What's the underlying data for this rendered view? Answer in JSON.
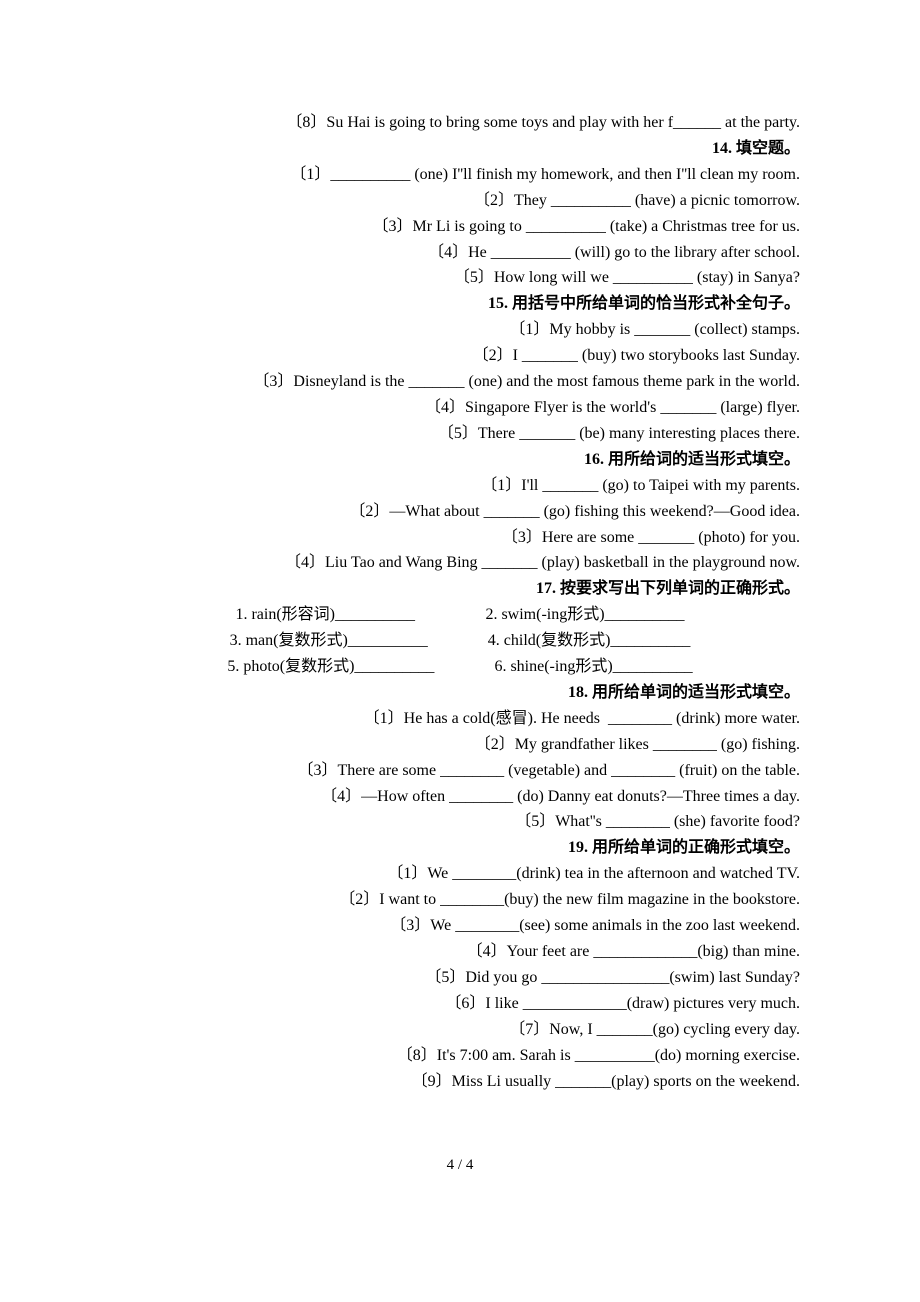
{
  "lines": [
    {
      "text": "〔8〕Su Hai is going to bring some toys and play with her f______ at the party."
    },
    {
      "text": "14. 填空题。",
      "bold": true
    },
    {
      "text": "〔1〕__________ (one) I''ll finish my homework, and then I''ll clean my room."
    },
    {
      "text": "〔2〕They __________ (have) a picnic tomorrow."
    },
    {
      "text": "〔3〕Mr Li is going to __________ (take) a Christmas tree for us."
    },
    {
      "text": "〔4〕He __________ (will) go to the library after school."
    },
    {
      "text": "〔5〕How long will we __________ (stay) in Sanya?"
    },
    {
      "text": "15. 用括号中所给单词的恰当形式补全句子。",
      "bold": true
    },
    {
      "text": "〔1〕My hobby is _______ (collect) stamps."
    },
    {
      "text": "〔2〕I _______ (buy) two storybooks last Sunday."
    },
    {
      "text": "〔3〕Disneyland is the _______ (one) and the most famous theme park in the world."
    },
    {
      "text": "〔4〕Singapore Flyer is the world's _______ (large) flyer."
    },
    {
      "text": "〔5〕There _______ (be) many interesting places there."
    },
    {
      "text": "16. 用所给词的适当形式填空。",
      "bold": true
    },
    {
      "text": "〔1〕I'll _______ (go) to Taipei with my parents."
    },
    {
      "text": "〔2〕—What about _______ (go) fishing this weekend?—Good idea."
    },
    {
      "text": "〔3〕Here are some _______ (photo) for you."
    },
    {
      "text": "〔4〕Liu Tao and Wang Bing _______ (play) basketball in the playground now."
    },
    {
      "text": "17. 按要求写出下列单词的正确形式。",
      "bold": true
    }
  ],
  "pairs": [
    {
      "left": "1. rain(形容词)__________",
      "right": "2. swim(-ing形式)__________"
    },
    {
      "left": "3. man(复数形式)__________",
      "right": "4. child(复数形式)__________"
    },
    {
      "left": "5. photo(复数形式)__________",
      "right": "6. shine(-ing形式)__________"
    }
  ],
  "lines2": [
    {
      "text": "18. 用所给单词的适当形式填空。",
      "bold": true
    },
    {
      "text": "〔1〕He has a cold(感冒). He needs  ________ (drink) more water."
    },
    {
      "text": "〔2〕My grandfather likes ________ (go) fishing."
    },
    {
      "text": "〔3〕There are some ________ (vegetable) and ________ (fruit) on the table."
    },
    {
      "text": "〔4〕—How often ________ (do) Danny eat donuts?—Three times a day."
    },
    {
      "text": "〔5〕What''s ________ (she) favorite food?"
    },
    {
      "text": "19. 用所给单词的正确形式填空。",
      "bold": true
    },
    {
      "text": "〔1〕We ________(drink) tea in the afternoon and watched TV."
    },
    {
      "text": "〔2〕I want to ________(buy) the new film magazine in the bookstore."
    },
    {
      "text": "〔3〕We ________(see) some animals in the zoo last weekend."
    },
    {
      "text": "〔4〕Your feet are _____________(big) than mine."
    },
    {
      "text": "〔5〕Did you go ________________(swim) last Sunday?"
    },
    {
      "text": "〔6〕I like _____________(draw) pictures very much."
    },
    {
      "text": "〔7〕Now, I _______(go) cycling every day."
    },
    {
      "text": "〔8〕It's 7:00 am. Sarah is __________(do) morning exercise."
    },
    {
      "text": "〔9〕Miss Li usually _______(play) sports on the weekend."
    }
  ],
  "footer": "4 / 4"
}
